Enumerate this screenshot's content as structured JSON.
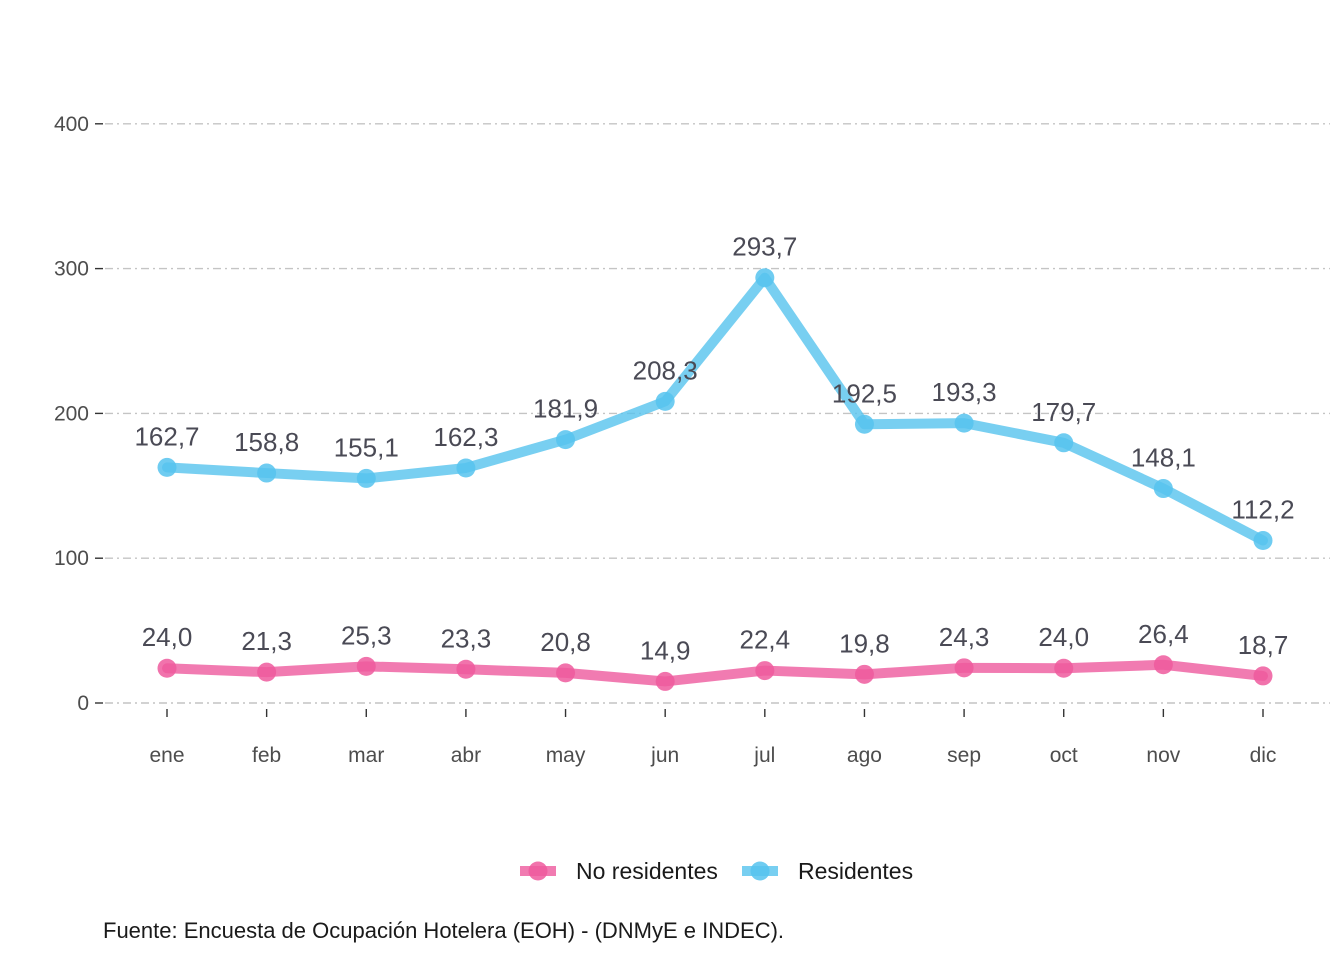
{
  "chart_data": {
    "type": "line",
    "categories": [
      "ene",
      "feb",
      "mar",
      "abr",
      "may",
      "jun",
      "jul",
      "ago",
      "sep",
      "oct",
      "nov",
      "dic"
    ],
    "series": [
      {
        "name": "Residentes",
        "color": "#56c3ee",
        "values": [
          162.7,
          158.8,
          155.1,
          162.3,
          181.9,
          208.3,
          293.7,
          192.5,
          193.3,
          179.7,
          148.1,
          112.2
        ],
        "labels": [
          "162,7",
          "158,8",
          "155,1",
          "162,3",
          "181,9",
          "208,3",
          "293,7",
          "192,5",
          "193,3",
          "179,7",
          "148,1",
          "112,2"
        ]
      },
      {
        "name": "No residentes",
        "color": "#ee5a9d",
        "values": [
          24.0,
          21.3,
          25.3,
          23.3,
          20.8,
          14.9,
          22.4,
          19.8,
          24.3,
          24.0,
          26.4,
          18.7
        ],
        "labels": [
          "24,0",
          "21,3",
          "25,3",
          "23,3",
          "20,8",
          "14,9",
          "22,4",
          "19,8",
          "24,3",
          "24,0",
          "26,4",
          "18,7"
        ]
      }
    ],
    "y_ticks": [
      0,
      100,
      200,
      300,
      400
    ],
    "ylim": [
      -20,
      420
    ],
    "grid": "horizontal dash-dot",
    "legend_position": "bottom",
    "legend_order": [
      "No residentes",
      "Residentes"
    ]
  },
  "caption": "Fuente: Encuesta de Ocupación Hotelera (EOH) - (DNMyE e INDEC)."
}
